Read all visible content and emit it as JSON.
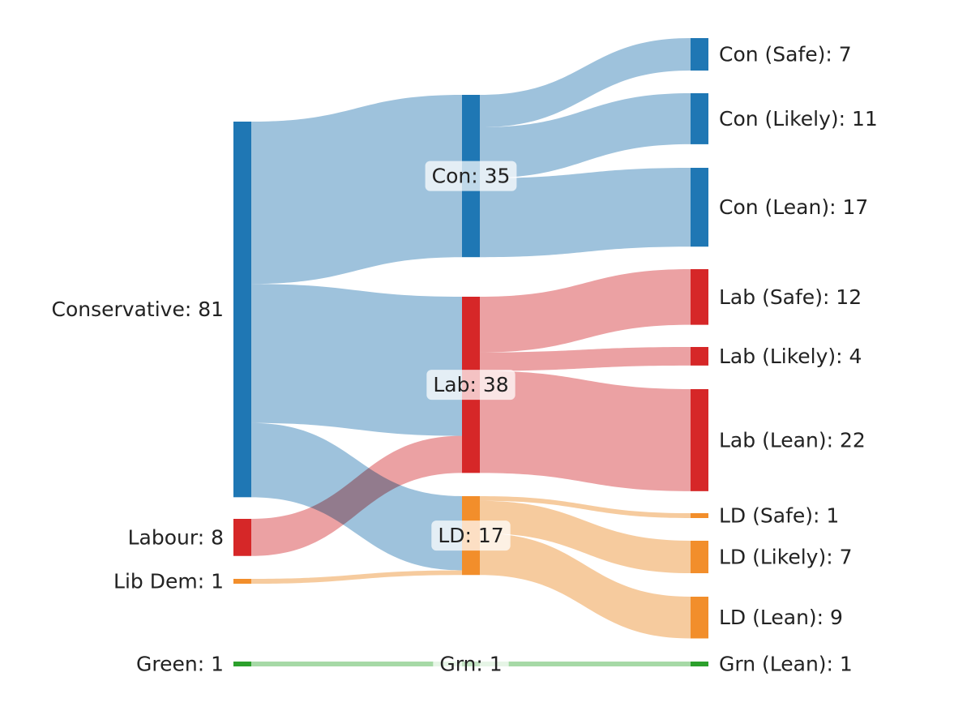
{
  "colors": {
    "con": "#1f77b4",
    "lab": "#d62728",
    "ld": "#f28e2b",
    "grn": "#2ca02c",
    "con_link": "#9ec2dc",
    "lab_link": "#eba1a3",
    "ld_link": "#f6cb9e",
    "grn_link": "#a6d9a6"
  },
  "chart_data": {
    "type": "sankey",
    "columns": [
      [
        {
          "id": "conservative",
          "label": "Conservative: 81",
          "group": "con",
          "value": 81
        },
        {
          "id": "labour",
          "label": "Labour: 8",
          "group": "lab",
          "value": 8
        },
        {
          "id": "libdem",
          "label": "Lib Dem: 1",
          "group": "ld",
          "value": 1
        },
        {
          "id": "green",
          "label": "Green: 1",
          "group": "grn",
          "value": 1
        }
      ],
      [
        {
          "id": "con",
          "label": "Con: 35",
          "group": "con",
          "value": 35
        },
        {
          "id": "lab",
          "label": "Lab: 38",
          "group": "lab",
          "value": 38
        },
        {
          "id": "ld",
          "label": "LD: 17",
          "group": "ld",
          "value": 17
        },
        {
          "id": "grn",
          "label": "Grn: 1",
          "group": "grn",
          "value": 1
        }
      ],
      [
        {
          "id": "con_safe",
          "label": "Con (Safe): 7",
          "group": "con",
          "value": 7
        },
        {
          "id": "con_likely",
          "label": "Con (Likely): 11",
          "group": "con",
          "value": 11
        },
        {
          "id": "con_lean",
          "label": "Con (Lean): 17",
          "group": "con",
          "value": 17
        },
        {
          "id": "lab_safe",
          "label": "Lab (Safe): 12",
          "group": "lab",
          "value": 12
        },
        {
          "id": "lab_likely",
          "label": "Lab (Likely): 4",
          "group": "lab",
          "value": 4
        },
        {
          "id": "lab_lean",
          "label": "Lab (Lean): 22",
          "group": "lab",
          "value": 22
        },
        {
          "id": "ld_safe",
          "label": "LD (Safe): 1",
          "group": "ld",
          "value": 1
        },
        {
          "id": "ld_likely",
          "label": "LD (Likely): 7",
          "group": "ld",
          "value": 7
        },
        {
          "id": "ld_lean",
          "label": "LD (Lean): 9",
          "group": "ld",
          "value": 9
        },
        {
          "id": "grn_lean",
          "label": "Grn (Lean): 1",
          "group": "grn",
          "value": 1
        }
      ]
    ],
    "links": [
      {
        "source": "conservative",
        "target": "con",
        "value": 35
      },
      {
        "source": "conservative",
        "target": "lab",
        "value": 30
      },
      {
        "source": "conservative",
        "target": "ld",
        "value": 16
      },
      {
        "source": "labour",
        "target": "lab",
        "value": 8
      },
      {
        "source": "libdem",
        "target": "ld",
        "value": 1
      },
      {
        "source": "green",
        "target": "grn",
        "value": 1
      },
      {
        "source": "con",
        "target": "con_safe",
        "value": 7
      },
      {
        "source": "con",
        "target": "con_likely",
        "value": 11
      },
      {
        "source": "con",
        "target": "con_lean",
        "value": 17
      },
      {
        "source": "lab",
        "target": "lab_safe",
        "value": 12
      },
      {
        "source": "lab",
        "target": "lab_likely",
        "value": 4
      },
      {
        "source": "lab",
        "target": "lab_lean",
        "value": 22
      },
      {
        "source": "ld",
        "target": "ld_safe",
        "value": 1
      },
      {
        "source": "ld",
        "target": "ld_likely",
        "value": 7
      },
      {
        "source": "ld",
        "target": "ld_lean",
        "value": 9
      },
      {
        "source": "grn",
        "target": "grn_lean",
        "value": 1
      }
    ]
  }
}
